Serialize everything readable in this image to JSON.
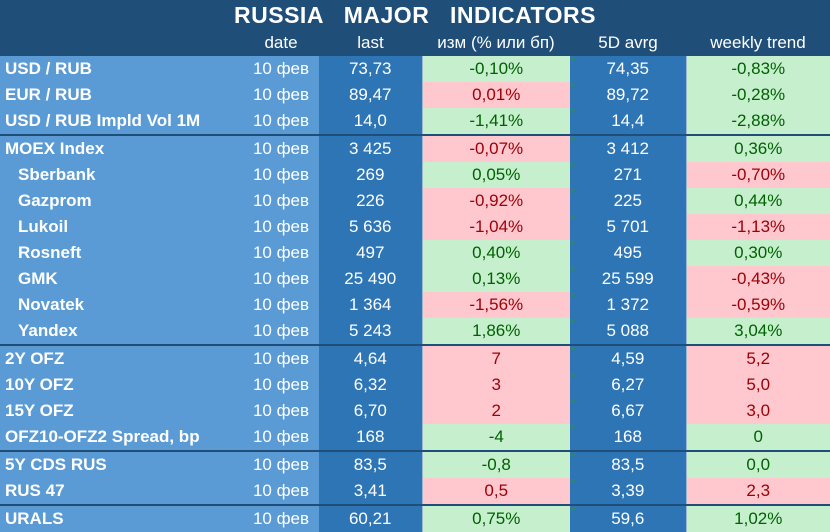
{
  "title": "RUSSIA   MAJOR   INDICATORS",
  "columns": [
    "",
    "date",
    "last",
    "изм (% или бп)",
    "5D avrg",
    "weekly trend"
  ],
  "rows": [
    {
      "name": "USD / RUB",
      "date": "10 фев",
      "last": "73,73",
      "chg": "-0,10%",
      "chg_dir": "pos",
      "avg": "74,35",
      "wk": "-0,83%",
      "wk_dir": "pos",
      "sub": false,
      "sep": true
    },
    {
      "name": "EUR / RUB",
      "date": "10 фев",
      "last": "89,47",
      "chg": "0,01%",
      "chg_dir": "neg",
      "avg": "89,72",
      "wk": "-0,28%",
      "wk_dir": "pos",
      "sub": false,
      "sep": false
    },
    {
      "name": "USD / RUB Impld Vol 1M",
      "date": "10 фев",
      "last": "14,0",
      "chg": "-1,41%",
      "chg_dir": "pos",
      "avg": "14,4",
      "wk": "-2,88%",
      "wk_dir": "pos",
      "sub": false,
      "sep": false
    },
    {
      "name": "MOEX Index",
      "date": "10 фев",
      "last": "3 425",
      "chg": "-0,07%",
      "chg_dir": "neg",
      "avg": "3 412",
      "wk": "0,36%",
      "wk_dir": "pos",
      "sub": false,
      "sep": true
    },
    {
      "name": "Sberbank",
      "date": "10 фев",
      "last": "269",
      "chg": "0,05%",
      "chg_dir": "pos",
      "avg": "271",
      "wk": "-0,70%",
      "wk_dir": "neg",
      "sub": true,
      "sep": false
    },
    {
      "name": "Gazprom",
      "date": "10 фев",
      "last": "226",
      "chg": "-0,92%",
      "chg_dir": "neg",
      "avg": "225",
      "wk": "0,44%",
      "wk_dir": "pos",
      "sub": true,
      "sep": false
    },
    {
      "name": "Lukoil",
      "date": "10 фев",
      "last": "5 636",
      "chg": "-1,04%",
      "chg_dir": "neg",
      "avg": "5 701",
      "wk": "-1,13%",
      "wk_dir": "neg",
      "sub": true,
      "sep": false
    },
    {
      "name": "Rosneft",
      "date": "10 фев",
      "last": "497",
      "chg": "0,40%",
      "chg_dir": "pos",
      "avg": "495",
      "wk": "0,30%",
      "wk_dir": "pos",
      "sub": true,
      "sep": false
    },
    {
      "name": "GMK",
      "date": "10 фев",
      "last": "25 490",
      "chg": "0,13%",
      "chg_dir": "pos",
      "avg": "25 599",
      "wk": "-0,43%",
      "wk_dir": "neg",
      "sub": true,
      "sep": false
    },
    {
      "name": "Novatek",
      "date": "10 фев",
      "last": "1 364",
      "chg": "-1,56%",
      "chg_dir": "neg",
      "avg": "1 372",
      "wk": "-0,59%",
      "wk_dir": "neg",
      "sub": true,
      "sep": false
    },
    {
      "name": "Yandex",
      "date": "10 фев",
      "last": "5 243",
      "chg": "1,86%",
      "chg_dir": "pos",
      "avg": "5 088",
      "wk": "3,04%",
      "wk_dir": "pos",
      "sub": true,
      "sep": false
    },
    {
      "name": "2Y OFZ",
      "date": "10 фев",
      "last": "4,64",
      "chg": "7",
      "chg_dir": "neg",
      "avg": "4,59",
      "wk": "5,2",
      "wk_dir": "neg",
      "sub": false,
      "sep": true
    },
    {
      "name": "10Y OFZ",
      "date": "10 фев",
      "last": "6,32",
      "chg": "3",
      "chg_dir": "neg",
      "avg": "6,27",
      "wk": "5,0",
      "wk_dir": "neg",
      "sub": false,
      "sep": false
    },
    {
      "name": "15Y OFZ",
      "date": "10 фев",
      "last": "6,70",
      "chg": "2",
      "chg_dir": "neg",
      "avg": "6,67",
      "wk": "3,0",
      "wk_dir": "neg",
      "sub": false,
      "sep": false
    },
    {
      "name": "OFZ10-OFZ2 Spread, bp",
      "date": "10 фев",
      "last": "168",
      "chg": "-4",
      "chg_dir": "pos",
      "avg": "168",
      "wk": "0",
      "wk_dir": "pos",
      "sub": false,
      "sep": false
    },
    {
      "name": "5Y CDS RUS",
      "date": "10 фев",
      "last": "83,5",
      "chg": "-0,8",
      "chg_dir": "pos",
      "avg": "83,5",
      "wk": "0,0",
      "wk_dir": "pos",
      "sub": false,
      "sep": true
    },
    {
      "name": "RUS 47",
      "date": "10 фев",
      "last": "3,41",
      "chg": "0,5",
      "chg_dir": "neg",
      "avg": "3,39",
      "wk": "2,3",
      "wk_dir": "neg",
      "sub": false,
      "sep": false
    },
    {
      "name": "URALS",
      "date": "10 фев",
      "last": "60,21",
      "chg": "0,75%",
      "chg_dir": "pos",
      "avg": "59,6",
      "wk": "1,02%",
      "wk_dir": "pos",
      "sub": false,
      "sep": true
    }
  ]
}
